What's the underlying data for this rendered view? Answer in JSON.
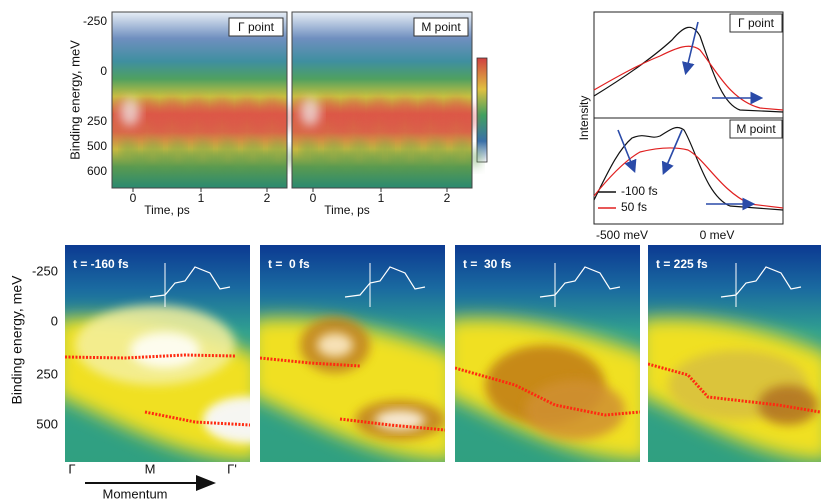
{
  "top_left": {
    "y_label": "Binding energy, meV",
    "y_ticks": [
      -250,
      0,
      250,
      500,
      600
    ],
    "panels": [
      {
        "label": "Γ point",
        "x_label": "Time, ps",
        "x_ticks": [
          0,
          1,
          2
        ]
      },
      {
        "label": "M point",
        "x_label": "Time, ps",
        "x_ticks": [
          0,
          1,
          2
        ]
      }
    ]
  },
  "top_right": {
    "y_label": "Intensity",
    "panels": [
      {
        "label": "Γ point"
      },
      {
        "label": "M point"
      }
    ],
    "legend": [
      "-100 fs",
      "50 fs"
    ],
    "x_ticks": [
      "-500 meV",
      "0 meV"
    ]
  },
  "bottom": {
    "y_label": "Binding energy, meV",
    "y_ticks": [
      -250,
      0,
      250,
      500
    ],
    "panels": [
      {
        "label": "t = -160 fs"
      },
      {
        "label": "t =  0 fs"
      },
      {
        "label": "t =  30 fs"
      },
      {
        "label": "t = 225 fs"
      }
    ],
    "x_ticks": [
      "Γ",
      "M",
      "Γ'"
    ],
    "x_label": "Momentum"
  }
}
